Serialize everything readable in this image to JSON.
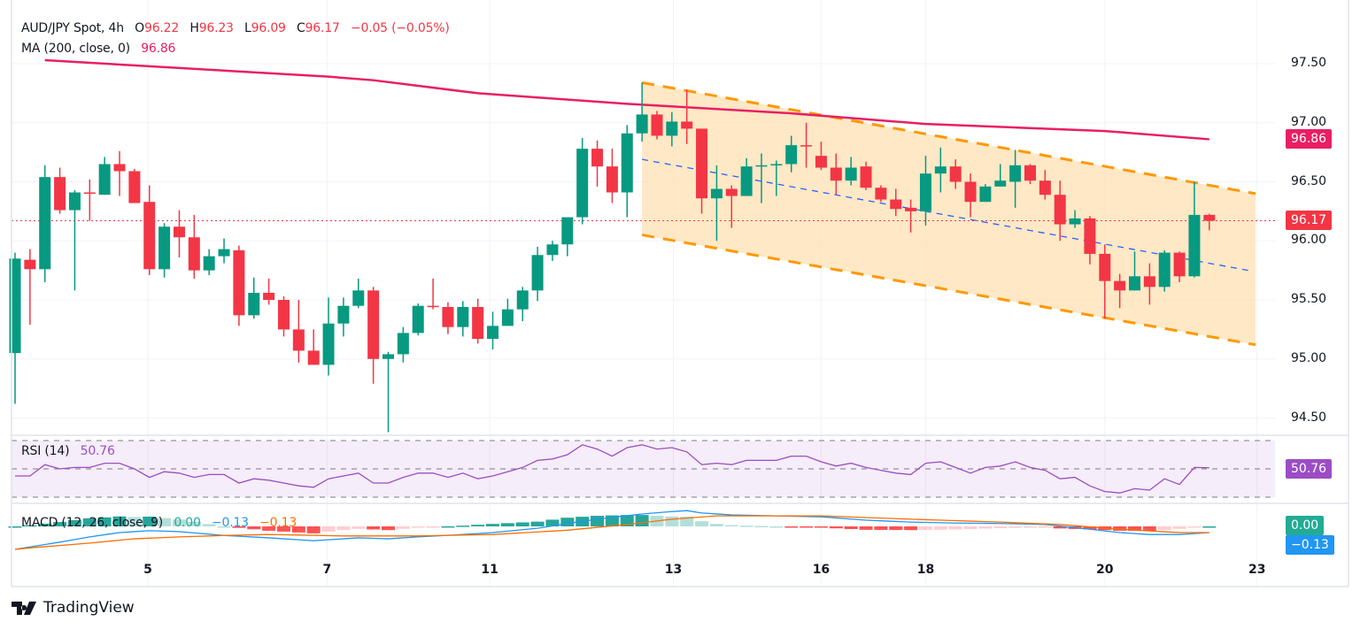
{
  "legend": {
    "symbol": "AUD/JPY Spot, 4h",
    "o_label": "O",
    "open": "96.22",
    "h_label": "H",
    "high": "96.23",
    "l_label": "L",
    "low": "96.09",
    "c_label": "C",
    "close": "96.17",
    "change": "−0.05 (−0.05%)",
    "ma_label": "MA (200, close, 0)",
    "ma_value": "96.86",
    "rsi_label": "RSI (14)",
    "rsi_value": "50.76",
    "macd_label": "MACD (12, 26, close, 9)",
    "macd_hist": "0.00",
    "macd_line": "−0.13",
    "macd_signal": "−0.13"
  },
  "badges": {
    "ma": "96.86",
    "price": "96.17",
    "rsi": "50.76",
    "macd_hist": "0.00",
    "macd": "−0.13"
  },
  "colors": {
    "up": "#089981",
    "down": "#f23645",
    "ma": "#e91e63",
    "channel": "#ff9800",
    "channel_fill": "#ffe0b2",
    "midline": "#2962ff",
    "rsi": "#9c4dc4",
    "macd": "#2196f3",
    "signal": "#ff6d00"
  },
  "brand": "TradingView",
  "chart_data": {
    "type": "candlestick",
    "title": "AUD/JPY Spot, 4h",
    "ylim": [
      94.3,
      97.75
    ],
    "y_ticks": [
      "97.50",
      "97.00",
      "96.50",
      "96.00",
      "95.50",
      "95.00",
      "94.50"
    ],
    "x_ticks": [
      {
        "label": "5",
        "index": 8.9
      },
      {
        "label": "7",
        "index": 20.9
      },
      {
        "label": "11",
        "index": 31.8
      },
      {
        "label": "13",
        "index": 44.1
      },
      {
        "label": "16",
        "index": 54.0
      },
      {
        "label": "18",
        "index": 61.0
      },
      {
        "label": "20",
        "index": 73.0
      },
      {
        "label": "23",
        "index": 83.2
      }
    ],
    "ohlc": [
      [
        95.05,
        95.9,
        94.62,
        95.85
      ],
      [
        95.84,
        95.93,
        95.29,
        95.76
      ],
      [
        95.76,
        96.64,
        95.65,
        96.54
      ],
      [
        96.54,
        96.62,
        96.23,
        96.26
      ],
      [
        96.26,
        96.43,
        95.58,
        96.41
      ],
      [
        96.41,
        96.52,
        96.17,
        96.4
      ],
      [
        96.39,
        96.71,
        96.39,
        96.65
      ],
      [
        96.65,
        96.76,
        96.38,
        96.59
      ],
      [
        96.59,
        96.61,
        96.32,
        96.32
      ],
      [
        96.33,
        96.47,
        95.71,
        95.76
      ],
      [
        95.76,
        96.15,
        95.69,
        96.12
      ],
      [
        96.12,
        96.26,
        95.86,
        96.03
      ],
      [
        96.03,
        96.22,
        95.68,
        95.75
      ],
      [
        95.75,
        95.93,
        95.71,
        95.87
      ],
      [
        95.87,
        96.02,
        95.81,
        95.93
      ],
      [
        95.92,
        95.96,
        95.28,
        95.37
      ],
      [
        95.37,
        95.69,
        95.34,
        95.56
      ],
      [
        95.56,
        95.68,
        95.46,
        95.5
      ],
      [
        95.5,
        95.53,
        95.19,
        95.25
      ],
      [
        95.25,
        95.5,
        94.97,
        95.07
      ],
      [
        95.07,
        95.25,
        94.95,
        94.95
      ],
      [
        94.95,
        95.52,
        94.86,
        95.3
      ],
      [
        95.3,
        95.52,
        95.19,
        95.45
      ],
      [
        95.45,
        95.68,
        95.43,
        95.58
      ],
      [
        95.58,
        95.61,
        94.79,
        95.0
      ],
      [
        95.0,
        95.06,
        94.38,
        95.04
      ],
      [
        95.04,
        95.27,
        94.97,
        95.22
      ],
      [
        95.22,
        95.47,
        95.2,
        95.45
      ],
      [
        95.45,
        95.68,
        95.42,
        95.44
      ],
      [
        95.44,
        95.48,
        95.21,
        95.27
      ],
      [
        95.27,
        95.49,
        95.19,
        95.44
      ],
      [
        95.44,
        95.51,
        95.13,
        95.17
      ],
      [
        95.17,
        95.4,
        95.08,
        95.28
      ],
      [
        95.28,
        95.51,
        95.28,
        95.42
      ],
      [
        95.42,
        95.61,
        95.32,
        95.58
      ],
      [
        95.58,
        95.95,
        95.49,
        95.88
      ],
      [
        95.88,
        96.0,
        95.83,
        95.97
      ],
      [
        95.97,
        96.2,
        95.87,
        96.2
      ],
      [
        96.2,
        96.87,
        96.14,
        96.78
      ],
      [
        96.78,
        96.85,
        96.46,
        96.63
      ],
      [
        96.63,
        96.78,
        96.32,
        96.41
      ],
      [
        96.41,
        96.98,
        96.2,
        96.91
      ],
      [
        96.91,
        97.34,
        96.84,
        97.07
      ],
      [
        97.07,
        97.1,
        96.86,
        96.89
      ],
      [
        96.89,
        97.09,
        96.8,
        97.01
      ],
      [
        97.01,
        97.28,
        96.82,
        96.95
      ],
      [
        96.95,
        96.95,
        96.23,
        96.36
      ],
      [
        96.36,
        96.64,
        96.0,
        96.44
      ],
      [
        96.44,
        96.47,
        96.11,
        96.38
      ],
      [
        96.38,
        96.7,
        96.38,
        96.63
      ],
      [
        96.63,
        96.74,
        96.32,
        96.64
      ],
      [
        96.64,
        96.68,
        96.38,
        96.65
      ],
      [
        96.65,
        96.89,
        96.58,
        96.81
      ],
      [
        96.81,
        97.0,
        96.62,
        96.8
      ],
      [
        96.72,
        96.84,
        96.6,
        96.62
      ],
      [
        96.62,
        96.74,
        96.39,
        96.51
      ],
      [
        96.51,
        96.71,
        96.47,
        96.62
      ],
      [
        96.63,
        96.67,
        96.43,
        96.45
      ],
      [
        96.45,
        96.47,
        96.33,
        96.35
      ],
      [
        96.35,
        96.44,
        96.21,
        96.27
      ],
      [
        96.28,
        96.35,
        96.07,
        96.25
      ],
      [
        96.25,
        96.72,
        96.13,
        96.57
      ],
      [
        96.57,
        96.79,
        96.41,
        96.63
      ],
      [
        96.63,
        96.69,
        96.44,
        96.5
      ],
      [
        96.5,
        96.57,
        96.2,
        96.33
      ],
      [
        96.33,
        96.48,
        96.33,
        96.46
      ],
      [
        96.46,
        96.65,
        96.46,
        96.51
      ],
      [
        96.5,
        96.77,
        96.28,
        96.64
      ],
      [
        96.64,
        96.65,
        96.48,
        96.51
      ],
      [
        96.51,
        96.6,
        96.35,
        96.39
      ],
      [
        96.39,
        96.51,
        96.0,
        96.14
      ],
      [
        96.14,
        96.26,
        96.11,
        96.19
      ],
      [
        96.19,
        96.21,
        95.8,
        95.89
      ],
      [
        95.89,
        95.97,
        95.34,
        95.66
      ],
      [
        95.66,
        95.72,
        95.43,
        95.58
      ],
      [
        95.58,
        95.91,
        95.58,
        95.7
      ],
      [
        95.7,
        95.81,
        95.46,
        95.61
      ],
      [
        95.61,
        95.92,
        95.57,
        95.9
      ],
      [
        95.9,
        95.91,
        95.65,
        95.7
      ],
      [
        95.7,
        96.5,
        95.69,
        96.22
      ],
      [
        96.22,
        96.23,
        96.09,
        96.17
      ]
    ],
    "ma200": [
      [
        2,
        97.53
      ],
      [
        21,
        97.39
      ],
      [
        24,
        97.36
      ],
      [
        31,
        97.25
      ],
      [
        41,
        97.16
      ],
      [
        52,
        97.08
      ],
      [
        61,
        96.99
      ],
      [
        73,
        96.93
      ],
      [
        80,
        96.86
      ]
    ],
    "channel": {
      "upper": [
        [
          42,
          97.34
        ],
        [
          83.1,
          96.4
        ]
      ],
      "lower": [
        [
          42,
          96.05
        ],
        [
          83.1,
          95.12
        ]
      ],
      "middle": [
        [
          42,
          96.69
        ],
        [
          82.6,
          95.75
        ]
      ]
    },
    "last_price": 96.17,
    "rsi": {
      "levels": [
        70,
        50,
        30
      ],
      "values": [
        45,
        45,
        53,
        50,
        51,
        51,
        54,
        54,
        50,
        44,
        48,
        47,
        44,
        46,
        46,
        40,
        43,
        42,
        40,
        38,
        37,
        43,
        45,
        47,
        40,
        40,
        44,
        47,
        47,
        44,
        47,
        43,
        45,
        48,
        51,
        56,
        57,
        60,
        67,
        64,
        59,
        65,
        67,
        64,
        65,
        62,
        53,
        54,
        53,
        56,
        56,
        56,
        59,
        59,
        55,
        52,
        54,
        51,
        49,
        47,
        46,
        54,
        55,
        51,
        47,
        51,
        52,
        55,
        51,
        49,
        43,
        44,
        38,
        34,
        33,
        36,
        35,
        43,
        39,
        51,
        50.76
      ]
    },
    "macd": {
      "macd_line": [
        [
          0,
          -0.48
        ],
        [
          1,
          -0.43
        ],
        [
          3,
          -0.33
        ],
        [
          5,
          -0.22
        ],
        [
          7,
          -0.13
        ],
        [
          9,
          -0.09
        ],
        [
          11,
          -0.11
        ],
        [
          14,
          -0.19
        ],
        [
          17,
          -0.24
        ],
        [
          20,
          -0.3
        ],
        [
          23,
          -0.24
        ],
        [
          25,
          -0.26
        ],
        [
          27,
          -0.22
        ],
        [
          30,
          -0.17
        ],
        [
          32,
          -0.13
        ],
        [
          35,
          -0.04
        ],
        [
          37,
          0.06
        ],
        [
          39,
          0.15
        ],
        [
          42,
          0.26
        ],
        [
          44,
          0.31
        ],
        [
          45,
          0.33
        ],
        [
          46,
          0.28
        ],
        [
          48,
          0.24
        ],
        [
          51,
          0.22
        ],
        [
          54,
          0.2
        ],
        [
          57,
          0.13
        ],
        [
          60,
          0.09
        ],
        [
          63,
          0.07
        ],
        [
          66,
          0.06
        ],
        [
          69,
          0.04
        ],
        [
          72,
          -0.06
        ],
        [
          74,
          -0.13
        ],
        [
          76,
          -0.17
        ],
        [
          78,
          -0.17
        ],
        [
          80,
          -0.13
        ]
      ],
      "signal_line": [
        [
          0,
          -0.48
        ],
        [
          1,
          -0.45
        ],
        [
          5,
          -0.35
        ],
        [
          8,
          -0.26
        ],
        [
          11,
          -0.22
        ],
        [
          14,
          -0.19
        ],
        [
          17,
          -0.17
        ],
        [
          22,
          -0.2
        ],
        [
          27,
          -0.2
        ],
        [
          32,
          -0.17
        ],
        [
          37,
          -0.08
        ],
        [
          41,
          0.04
        ],
        [
          44,
          0.15
        ],
        [
          47,
          0.22
        ],
        [
          51,
          0.22
        ],
        [
          54,
          0.22
        ],
        [
          60,
          0.15
        ],
        [
          66,
          0.09
        ],
        [
          70,
          0.04
        ],
        [
          74,
          -0.06
        ],
        [
          78,
          -0.13
        ],
        [
          80,
          -0.13
        ]
      ]
    }
  }
}
